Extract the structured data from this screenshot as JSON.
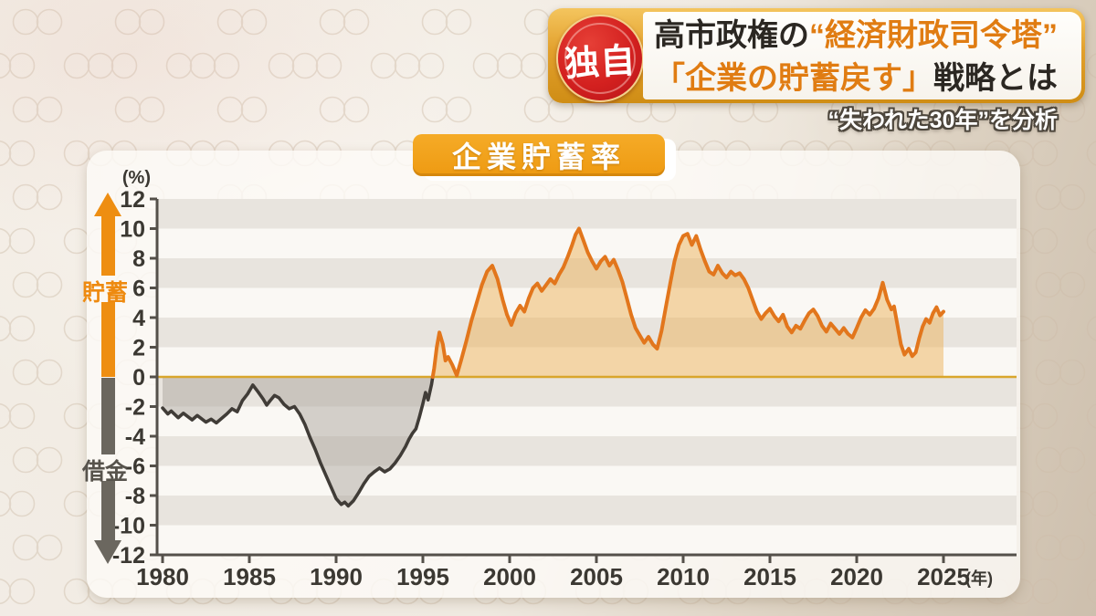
{
  "header": {
    "badge": "独自",
    "line1_black": "高市政権の",
    "line1_orange": "“経済財政司令塔”",
    "line2_orange": "「企業の貯蓄戻す」",
    "line2_black": "戦略とは",
    "subtitle": "“失われた30年”を分析",
    "colors": {
      "accent": "#e07c12",
      "text": "#2b2722",
      "badge_bg": "#d3201f"
    }
  },
  "chart_data": {
    "type": "area",
    "title": "企業貯蓄率",
    "unit_y": "(%)",
    "unit_x": "(年)",
    "ylim": [
      -12,
      12
    ],
    "xlim": [
      1980,
      2025
    ],
    "y_ticks": [
      12,
      10,
      8,
      6,
      4,
      2,
      0,
      -2,
      -4,
      -6,
      -8,
      -10,
      -12
    ],
    "x_ticks": [
      1980,
      1985,
      1990,
      1995,
      2000,
      2005,
      2010,
      2015,
      2020,
      2025
    ],
    "axis_labels": {
      "positive": "貯蓄",
      "negative": "借金"
    },
    "grid": "horizontal stripes every 2 units, shaded band starting at 12-10",
    "legend": "none",
    "series": [
      {
        "name": "企業貯蓄率",
        "style": "negative values dark gray, positive values orange, area filled to zero line",
        "points": [
          [
            1980.0,
            -2.1
          ],
          [
            1980.3,
            -2.5
          ],
          [
            1980.5,
            -2.3
          ],
          [
            1980.9,
            -2.75
          ],
          [
            1981.2,
            -2.45
          ],
          [
            1981.7,
            -2.9
          ],
          [
            1982.0,
            -2.6
          ],
          [
            1982.5,
            -3.05
          ],
          [
            1982.8,
            -2.85
          ],
          [
            1983.1,
            -3.1
          ],
          [
            1983.4,
            -2.8
          ],
          [
            1983.7,
            -2.5
          ],
          [
            1984.0,
            -2.15
          ],
          [
            1984.3,
            -2.35
          ],
          [
            1984.6,
            -1.6
          ],
          [
            1984.9,
            -1.15
          ],
          [
            1985.2,
            -0.55
          ],
          [
            1985.5,
            -1.0
          ],
          [
            1985.8,
            -1.5
          ],
          [
            1986.0,
            -1.9
          ],
          [
            1986.2,
            -1.6
          ],
          [
            1986.45,
            -1.25
          ],
          [
            1986.7,
            -1.4
          ],
          [
            1987.0,
            -1.85
          ],
          [
            1987.3,
            -2.15
          ],
          [
            1987.6,
            -2.0
          ],
          [
            1987.9,
            -2.5
          ],
          [
            1988.2,
            -3.2
          ],
          [
            1988.5,
            -4.1
          ],
          [
            1988.8,
            -4.9
          ],
          [
            1989.1,
            -5.8
          ],
          [
            1989.4,
            -6.6
          ],
          [
            1989.7,
            -7.4
          ],
          [
            1990.0,
            -8.2
          ],
          [
            1990.3,
            -8.6
          ],
          [
            1990.5,
            -8.45
          ],
          [
            1990.7,
            -8.7
          ],
          [
            1991.0,
            -8.35
          ],
          [
            1991.3,
            -7.8
          ],
          [
            1991.6,
            -7.2
          ],
          [
            1991.9,
            -6.7
          ],
          [
            1992.2,
            -6.4
          ],
          [
            1992.5,
            -6.15
          ],
          [
            1992.8,
            -6.4
          ],
          [
            1993.1,
            -6.2
          ],
          [
            1993.4,
            -5.8
          ],
          [
            1993.7,
            -5.3
          ],
          [
            1994.0,
            -4.7
          ],
          [
            1994.2,
            -4.2
          ],
          [
            1994.4,
            -3.8
          ],
          [
            1994.6,
            -3.5
          ],
          [
            1994.8,
            -2.7
          ],
          [
            1995.0,
            -1.8
          ],
          [
            1995.15,
            -1.05
          ],
          [
            1995.3,
            -1.55
          ],
          [
            1995.5,
            -0.5
          ],
          [
            1995.65,
            0.6
          ],
          [
            1995.8,
            2.0
          ],
          [
            1995.95,
            3.0
          ],
          [
            1996.15,
            2.2
          ],
          [
            1996.3,
            1.1
          ],
          [
            1996.45,
            1.35
          ],
          [
            1996.7,
            0.8
          ],
          [
            1996.95,
            0.1
          ],
          [
            1997.2,
            1.1
          ],
          [
            1997.5,
            2.4
          ],
          [
            1997.8,
            3.8
          ],
          [
            1998.1,
            5.0
          ],
          [
            1998.4,
            6.2
          ],
          [
            1998.7,
            7.1
          ],
          [
            1999.0,
            7.5
          ],
          [
            1999.3,
            6.6
          ],
          [
            1999.6,
            5.2
          ],
          [
            1999.85,
            4.2
          ],
          [
            2000.1,
            3.5
          ],
          [
            2000.35,
            4.3
          ],
          [
            2000.6,
            4.8
          ],
          [
            2000.85,
            4.4
          ],
          [
            2001.1,
            5.3
          ],
          [
            2001.35,
            6.0
          ],
          [
            2001.6,
            6.3
          ],
          [
            2001.85,
            5.8
          ],
          [
            2002.1,
            6.2
          ],
          [
            2002.35,
            6.6
          ],
          [
            2002.6,
            6.3
          ],
          [
            2002.85,
            6.9
          ],
          [
            2003.1,
            7.4
          ],
          [
            2003.35,
            8.1
          ],
          [
            2003.6,
            8.9
          ],
          [
            2003.8,
            9.6
          ],
          [
            2004.0,
            10.0
          ],
          [
            2004.25,
            9.2
          ],
          [
            2004.5,
            8.4
          ],
          [
            2004.75,
            7.8
          ],
          [
            2005.0,
            7.3
          ],
          [
            2005.25,
            7.8
          ],
          [
            2005.5,
            8.1
          ],
          [
            2005.75,
            7.5
          ],
          [
            2006.0,
            7.9
          ],
          [
            2006.25,
            7.2
          ],
          [
            2006.5,
            6.4
          ],
          [
            2006.75,
            5.3
          ],
          [
            2007.0,
            4.2
          ],
          [
            2007.25,
            3.3
          ],
          [
            2007.5,
            2.8
          ],
          [
            2007.75,
            2.3
          ],
          [
            2008.0,
            2.7
          ],
          [
            2008.25,
            2.2
          ],
          [
            2008.5,
            1.9
          ],
          [
            2008.75,
            3.1
          ],
          [
            2009.0,
            4.7
          ],
          [
            2009.25,
            6.3
          ],
          [
            2009.5,
            7.8
          ],
          [
            2009.75,
            8.9
          ],
          [
            2010.0,
            9.5
          ],
          [
            2010.25,
            9.65
          ],
          [
            2010.5,
            8.9
          ],
          [
            2010.75,
            9.5
          ],
          [
            2011.0,
            8.6
          ],
          [
            2011.25,
            7.8
          ],
          [
            2011.5,
            7.1
          ],
          [
            2011.75,
            6.9
          ],
          [
            2012.0,
            7.5
          ],
          [
            2012.25,
            7.0
          ],
          [
            2012.5,
            6.7
          ],
          [
            2012.75,
            7.1
          ],
          [
            2013.0,
            6.85
          ],
          [
            2013.25,
            7.0
          ],
          [
            2013.5,
            6.6
          ],
          [
            2013.75,
            6.0
          ],
          [
            2014.0,
            5.2
          ],
          [
            2014.25,
            4.4
          ],
          [
            2014.5,
            3.9
          ],
          [
            2014.75,
            4.3
          ],
          [
            2015.0,
            4.6
          ],
          [
            2015.25,
            4.1
          ],
          [
            2015.5,
            3.75
          ],
          [
            2015.75,
            4.2
          ],
          [
            2016.0,
            3.4
          ],
          [
            2016.25,
            3.0
          ],
          [
            2016.5,
            3.45
          ],
          [
            2016.75,
            3.25
          ],
          [
            2017.0,
            3.8
          ],
          [
            2017.25,
            4.3
          ],
          [
            2017.5,
            4.55
          ],
          [
            2017.75,
            4.1
          ],
          [
            2018.0,
            3.45
          ],
          [
            2018.25,
            3.05
          ],
          [
            2018.5,
            3.6
          ],
          [
            2018.75,
            3.25
          ],
          [
            2019.0,
            2.9
          ],
          [
            2019.25,
            3.3
          ],
          [
            2019.5,
            2.9
          ],
          [
            2019.75,
            2.65
          ],
          [
            2020.0,
            3.3
          ],
          [
            2020.25,
            4.0
          ],
          [
            2020.5,
            4.5
          ],
          [
            2020.75,
            4.2
          ],
          [
            2021.0,
            4.6
          ],
          [
            2021.25,
            5.3
          ],
          [
            2021.5,
            6.35
          ],
          [
            2021.75,
            5.2
          ],
          [
            2022.0,
            4.55
          ],
          [
            2022.15,
            4.75
          ],
          [
            2022.35,
            3.5
          ],
          [
            2022.55,
            2.2
          ],
          [
            2022.75,
            1.5
          ],
          [
            2023.0,
            1.9
          ],
          [
            2023.2,
            1.4
          ],
          [
            2023.4,
            1.65
          ],
          [
            2023.6,
            2.6
          ],
          [
            2023.8,
            3.4
          ],
          [
            2024.0,
            3.9
          ],
          [
            2024.2,
            3.65
          ],
          [
            2024.4,
            4.3
          ],
          [
            2024.6,
            4.7
          ],
          [
            2024.8,
            4.15
          ],
          [
            2025.0,
            4.4
          ]
        ]
      }
    ],
    "colors": {
      "line_positive": "#e2761c",
      "fill_positive": "rgba(235,177,90,0.5)",
      "line_negative": "#403c37",
      "fill_negative": "rgba(172,166,157,0.5)",
      "zero_line": "#d9a62c",
      "axis": "#54504a",
      "stripe_dark": "#e8e4de",
      "stripe_light": "#faf8f4",
      "label": "#3b3832",
      "arrow_positive": "#ee8e12",
      "arrow_negative": "#6b675f"
    }
  }
}
